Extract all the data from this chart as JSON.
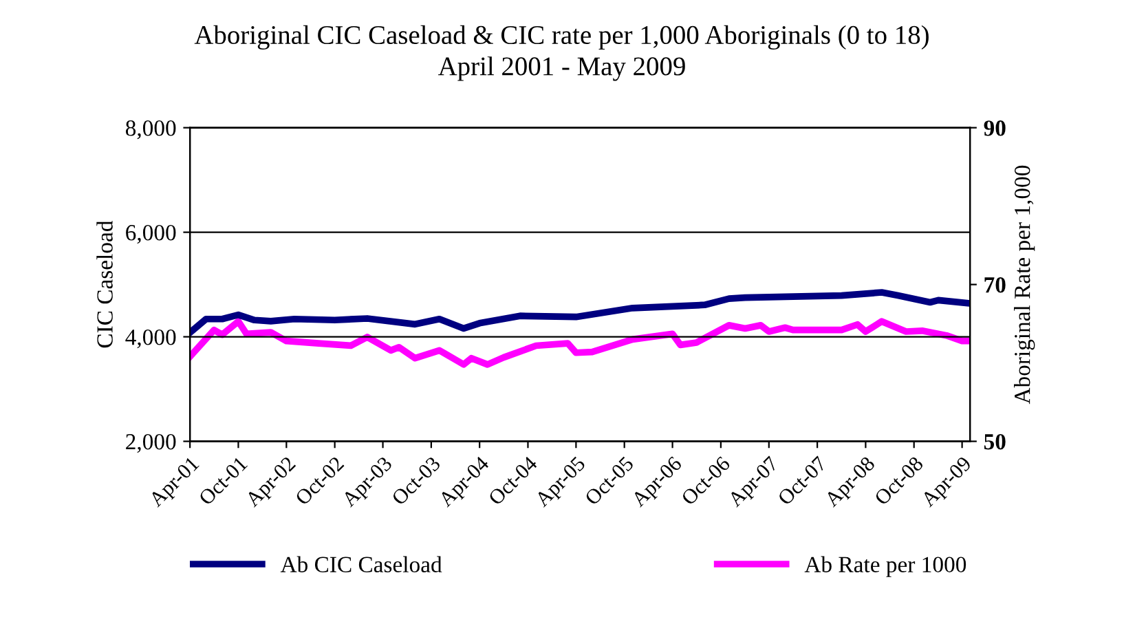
{
  "chart_data": {
    "type": "line",
    "title": "Aboriginal CIC Caseload & CIC rate per 1,000 Aboriginals (0 to 18)",
    "subtitle": "April 2001 - May 2009",
    "ylabel": "CIC Caseload",
    "y2label": "Aboriginal Rate per 1,000",
    "series": [
      {
        "name": "Ab CIC Caseload",
        "color": "#000080",
        "x": [
          "2001-04",
          "2001-06",
          "2001-08",
          "2001-10",
          "2001-12",
          "2002-02",
          "2002-05",
          "2002-10",
          "2003-02",
          "2003-08",
          "2003-11",
          "2004-02",
          "2004-04",
          "2004-09",
          "2005-04",
          "2005-11",
          "2006-08",
          "2006-11",
          "2007-01",
          "2008-01",
          "2008-06",
          "2008-08",
          "2008-12",
          "2009-01",
          "2009-05"
        ],
        "values": [
          4080,
          4340,
          4340,
          4420,
          4320,
          4300,
          4340,
          4320,
          4350,
          4240,
          4340,
          4160,
          4260,
          4400,
          4380,
          4550,
          4610,
          4730,
          4750,
          4790,
          4850,
          4790,
          4660,
          4700,
          4640
        ]
      },
      {
        "name": "Ab Rate per 1000",
        "color": "#ff00ff",
        "axis": "y2",
        "x": [
          "2001-04",
          "2001-07",
          "2001-08",
          "2001-10",
          "2001-11",
          "2002-02",
          "2002-04",
          "2002-08",
          "2002-12",
          "2003-02",
          "2003-05",
          "2003-06",
          "2003-08",
          "2003-11",
          "2004-02",
          "2004-03",
          "2004-05",
          "2004-07",
          "2004-11",
          "2005-03",
          "2005-04",
          "2005-06",
          "2005-11",
          "2006-04",
          "2006-05",
          "2006-07",
          "2006-11",
          "2007-01",
          "2007-03",
          "2007-04",
          "2007-06",
          "2007-07",
          "2008-01",
          "2008-03",
          "2008-04",
          "2008-06",
          "2008-09",
          "2008-11",
          "2009-02",
          "2009-04",
          "2009-05"
        ],
        "values": [
          60.8,
          64.2,
          63.6,
          65.3,
          63.7,
          63.9,
          62.8,
          62.5,
          62.2,
          63.3,
          61.6,
          62.0,
          60.6,
          61.6,
          59.8,
          60.6,
          59.8,
          60.7,
          62.2,
          62.5,
          61.3,
          61.4,
          63.0,
          63.7,
          62.3,
          62.6,
          64.8,
          64.4,
          64.8,
          64.0,
          64.5,
          64.2,
          64.2,
          64.9,
          64.0,
          65.3,
          64.0,
          64.1,
          63.5,
          62.8,
          62.8
        ]
      }
    ],
    "xlim": [
      "2001-04",
      "2009-05"
    ],
    "xticks": [
      {
        "value": "2001-04",
        "label": "Apr-01"
      },
      {
        "value": "2001-10",
        "label": "Oct-01"
      },
      {
        "value": "2002-04",
        "label": "Apr-02"
      },
      {
        "value": "2002-10",
        "label": "Oct-02"
      },
      {
        "value": "2003-04",
        "label": "Apr-03"
      },
      {
        "value": "2003-10",
        "label": "Oct-03"
      },
      {
        "value": "2004-04",
        "label": "Apr-04"
      },
      {
        "value": "2004-10",
        "label": "Oct-04"
      },
      {
        "value": "2005-04",
        "label": "Apr-05"
      },
      {
        "value": "2005-10",
        "label": "Oct-05"
      },
      {
        "value": "2006-04",
        "label": "Apr-06"
      },
      {
        "value": "2006-10",
        "label": "Oct-06"
      },
      {
        "value": "2007-04",
        "label": "Apr-07"
      },
      {
        "value": "2007-10",
        "label": "Oct-07"
      },
      {
        "value": "2008-04",
        "label": "Apr-08"
      },
      {
        "value": "2008-10",
        "label": "Oct-08"
      },
      {
        "value": "2009-04",
        "label": "Apr-09"
      }
    ],
    "ylim": [
      2000,
      8000
    ],
    "yticks": [
      {
        "value": 2000,
        "label": "2,000"
      },
      {
        "value": 4000,
        "label": "4,000"
      },
      {
        "value": 6000,
        "label": "6,000"
      },
      {
        "value": 8000,
        "label": "8,000"
      }
    ],
    "y2lim": [
      50,
      90
    ],
    "y2ticks": [
      50,
      70,
      90
    ],
    "grid": "y",
    "legend": "bottom",
    "marker": "none",
    "line_style": "solid"
  }
}
